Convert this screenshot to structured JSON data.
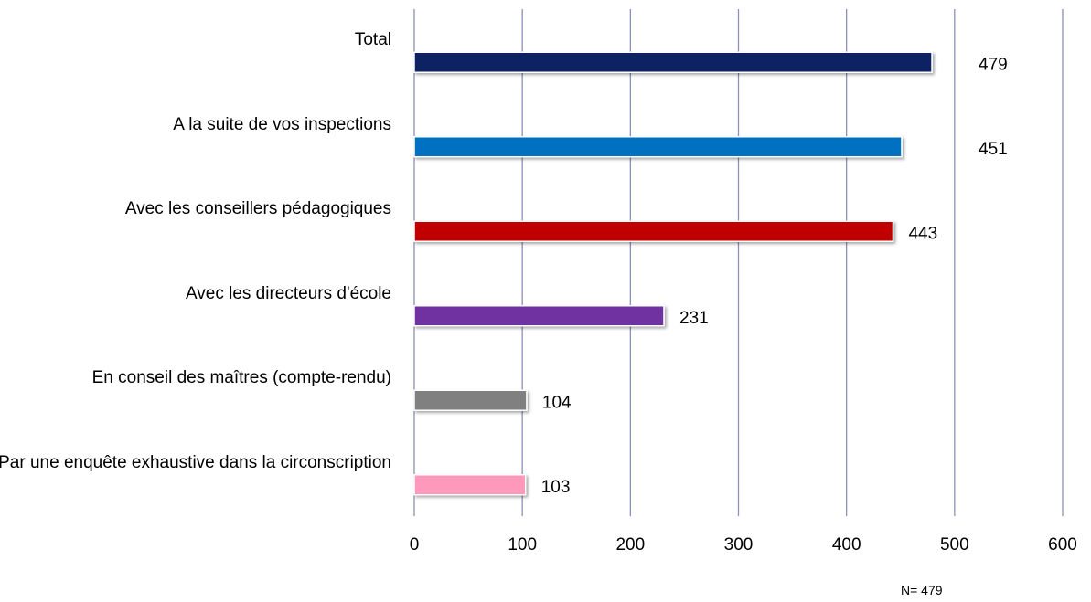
{
  "chart_data": {
    "type": "bar",
    "orientation": "horizontal",
    "categories": [
      "Total",
      "A la suite de vos inspections",
      "Avec les conseillers pédagogiques",
      "Avec les directeurs d'école",
      "En conseil des maîtres (compte-rendu)",
      "Par une enquête exhaustive dans la circonscription"
    ],
    "values": [
      479,
      451,
      443,
      231,
      104,
      103
    ],
    "colors": [
      "#0f2464",
      "#0070c0",
      "#c00000",
      "#7030a0",
      "#808080",
      "#ff99bb"
    ],
    "xlim": [
      0,
      600
    ],
    "xticks": [
      0,
      100,
      200,
      300,
      400,
      500,
      600
    ],
    "grid": true,
    "note": "N= 479"
  }
}
